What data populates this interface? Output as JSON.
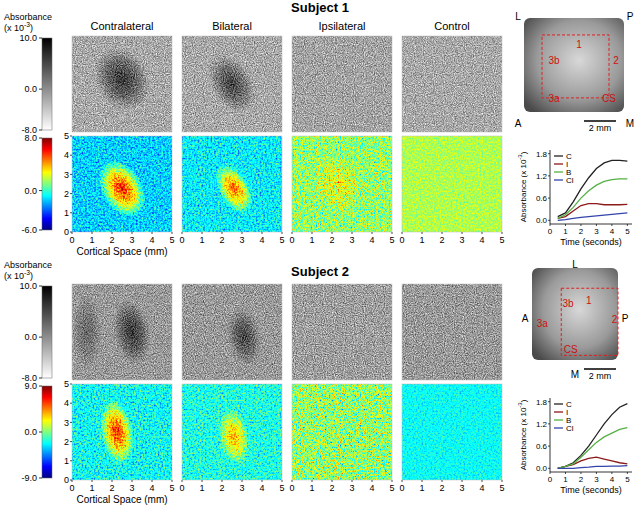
{
  "figure": {
    "column_titles": [
      "Contralateral",
      "Bilateral",
      "Ipsilateral",
      "Control"
    ],
    "subjects": [
      {
        "title": "Subject 1",
        "absorbance_colorbar": {
          "label": [
            "Absorbance",
            "(x 10",
            "-3",
            ")"
          ],
          "range": [
            -8,
            10
          ],
          "ticks": [
            {
              "value": 10,
              "label": "10.0"
            },
            {
              "value": 0,
              "label": "0.0"
            },
            {
              "value": -8,
              "label": "-8.0"
            }
          ]
        },
        "map_colorbar": {
          "range": [
            -6,
            8
          ],
          "ticks": [
            {
              "value": 8,
              "label": "8.0"
            },
            {
              "value": 0,
              "label": "0.0"
            },
            {
              "value": -6,
              "label": "-6.0"
            }
          ]
        },
        "map_axes": {
          "xlabel": "Cortical Space (mm)",
          "xlim": [
            0,
            5
          ],
          "xticks": [
            0,
            1,
            2,
            3,
            4,
            5
          ],
          "ylim": [
            0,
            5
          ],
          "yticks": [
            0,
            1,
            2,
            3,
            4,
            5
          ]
        },
        "photo": {
          "orientation": [
            "L",
            "P",
            "A",
            "M"
          ],
          "areas": [
            "3b",
            "1",
            "2",
            "3a",
            "CS"
          ],
          "scale_bar": "2 mm"
        }
      },
      {
        "title": "Subject 2",
        "absorbance_colorbar": {
          "label": [
            "Absorbance",
            "(x 10",
            "-3",
            ")"
          ],
          "range": [
            -8,
            10
          ],
          "ticks": [
            {
              "value": 10,
              "label": "10.0"
            },
            {
              "value": 0,
              "label": "0.0"
            },
            {
              "value": -8,
              "label": "-8.0"
            }
          ]
        },
        "map_colorbar": {
          "range": [
            -9,
            9
          ],
          "ticks": [
            {
              "value": 9,
              "label": "9.0"
            },
            {
              "value": 0,
              "label": "0.0"
            },
            {
              "value": -9,
              "label": "-9.0"
            }
          ]
        },
        "map_axes": {
          "xlabel": "Cortical Space (mm)",
          "xlim": [
            0,
            5
          ],
          "xticks": [
            0,
            1,
            2,
            3,
            4,
            5
          ],
          "ylim": [
            0,
            5
          ],
          "yticks": [
            0,
            1,
            2,
            3,
            4,
            5
          ]
        },
        "photo": {
          "orientation": [
            "L",
            "P",
            "A",
            "M"
          ],
          "areas": [
            "3b",
            "1",
            "2",
            "3a",
            "CS"
          ],
          "scale_bar": "2 mm"
        }
      }
    ]
  },
  "chart_data": [
    {
      "type": "line",
      "xlabel": "Time (seconds)",
      "ylabel": [
        "Absorbance (x 10",
        "-3",
        ")"
      ],
      "x": [
        0.5,
        1,
        1.5,
        2,
        2.5,
        3,
        3.5,
        4,
        4.5,
        5
      ],
      "xlim": [
        0,
        5.3
      ],
      "xticks": [
        0,
        1,
        2,
        3,
        4,
        5
      ],
      "ylim": [
        -0.1,
        1.9
      ],
      "yticks": [
        {
          "value": 0,
          "label": "0.0"
        },
        0.6,
        1.2,
        1.8
      ],
      "legend": "upper left",
      "series": [
        {
          "name": "C",
          "color": "#222222",
          "values": [
            0.1,
            0.2,
            0.5,
            0.85,
            1.15,
            1.4,
            1.55,
            1.62,
            1.62,
            1.6
          ]
        },
        {
          "name": "I",
          "color": "#8b1a1a",
          "values": [
            0.05,
            0.1,
            0.25,
            0.4,
            0.45,
            0.45,
            0.42,
            0.42,
            0.42,
            0.43
          ]
        },
        {
          "name": "B",
          "color": "#55b043",
          "values": [
            0.05,
            0.15,
            0.35,
            0.6,
            0.8,
            0.95,
            1.05,
            1.1,
            1.12,
            1.12
          ]
        },
        {
          "name": "Cl",
          "color": "#3344aa",
          "values": [
            0,
            0.02,
            0.05,
            0.08,
            0.1,
            0.12,
            0.14,
            0.16,
            0.18,
            0.2
          ]
        }
      ]
    },
    {
      "type": "line",
      "xlabel": "Time (seconds)",
      "ylabel": [
        "Absorbance (x 10",
        "-3",
        ")"
      ],
      "x": [
        0.5,
        1,
        1.5,
        2,
        2.5,
        3,
        3.5,
        4,
        4.5,
        5
      ],
      "xlim": [
        0,
        5.3
      ],
      "xticks": [
        0,
        1,
        2,
        3,
        4,
        5
      ],
      "ylim": [
        -0.1,
        1.9
      ],
      "yticks": [
        {
          "value": 0,
          "label": "0.0"
        },
        0.6,
        1.2,
        1.8
      ],
      "legend": "upper left",
      "series": [
        {
          "name": "C",
          "color": "#222222",
          "values": [
            0,
            0.05,
            0.15,
            0.35,
            0.6,
            0.9,
            1.2,
            1.45,
            1.65,
            1.75
          ]
        },
        {
          "name": "I",
          "color": "#8b1a1a",
          "values": [
            0,
            0.05,
            0.1,
            0.2,
            0.27,
            0.3,
            0.25,
            0.2,
            0.15,
            0.12
          ]
        },
        {
          "name": "B",
          "color": "#55b043",
          "values": [
            0,
            0.05,
            0.12,
            0.3,
            0.5,
            0.7,
            0.85,
            0.95,
            1.05,
            1.1
          ]
        },
        {
          "name": "Cl",
          "color": "#3344aa",
          "values": [
            0,
            0,
            0,
            0.02,
            0.03,
            0.05,
            0.05,
            0.06,
            0.06,
            0.07
          ]
        }
      ]
    }
  ]
}
